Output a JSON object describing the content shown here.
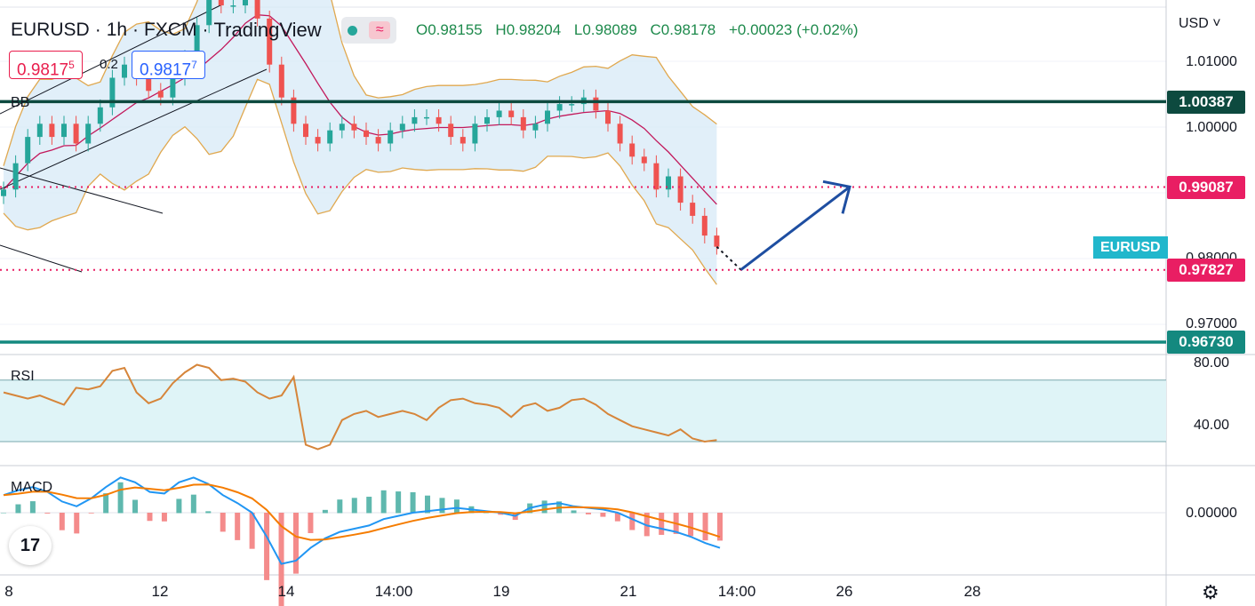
{
  "header": {
    "symbol": "EURUSD",
    "interval": "1h",
    "exchange": "FXCM",
    "brand": "TradingView",
    "icons": [
      "status-dot-icon",
      "wave-icon"
    ],
    "ohlc": {
      "open": "O0.98155",
      "high": "H0.98204",
      "low": "L0.98089",
      "close": "C0.98178",
      "change": "+0.00023 (+0.02%)"
    },
    "sell_price_main": "0.9817",
    "sell_price_sup": "5",
    "buy_price_main": "0.9817",
    "buy_price_sup": "7",
    "spread": "0.2"
  },
  "indicators": {
    "bb": "BB",
    "rsi": "RSI",
    "macd": "MACD"
  },
  "currency": "USD",
  "symbol_tag": "EURUSD",
  "price_axis": [
    "1.01000",
    "1.00000",
    "0.98000",
    "0.97000"
  ],
  "rsi_axis": [
    "80.00",
    "40.00"
  ],
  "macd_axis": [
    "0.00000"
  ],
  "level_labels": [
    {
      "value": "1.00387",
      "color": "#0d4a3f"
    },
    {
      "value": "0.99087",
      "color": "#e91e63"
    },
    {
      "value": "0.97827",
      "color": "#e91e63"
    },
    {
      "value": "0.96730",
      "color": "#14897f"
    }
  ],
  "x_axis": [
    "8",
    "12",
    "14",
    "14:00",
    "19",
    "21",
    "14:00",
    "26",
    "28"
  ],
  "colors": {
    "up": "#26a69a",
    "down": "#ef5350",
    "bb_fill": "#d7e9f7",
    "bb_band": "#e0a84f",
    "bb_basis": "#c2185b",
    "rsi_line": "#d6853a",
    "rsi_band": "#dff4f7",
    "macd_line": "#2196f3",
    "signal_line": "#f57c00",
    "arrow": "#1e4ea1"
  },
  "chart_data": {
    "type": "line",
    "title": "EURUSD · 1h · FXCM",
    "series": [
      {
        "name": "EURUSD",
        "values": [
          0.9905,
          0.9945,
          0.9985,
          1.0005,
          0.9985,
          1.0005,
          0.9975,
          1.0005,
          1.003,
          1.0075,
          1.0095,
          1.0075,
          1.0055,
          1.0045,
          1.0075,
          1.0105,
          1.0155,
          1.0205,
          1.0185,
          1.0185,
          1.0195,
          1.0165,
          1.0095,
          1.0045,
          1.0005,
          0.9985,
          0.9975,
          0.9995,
          1.0005,
          0.9995,
          0.9985,
          0.9975,
          0.9995,
          1.0005,
          1.0015,
          1.0015,
          1.0005,
          0.9985,
          0.9975,
          1.0005,
          1.0015,
          1.0025,
          1.0015,
          0.9995,
          1.0005,
          1.0025,
          1.0035,
          1.0035,
          1.0045,
          1.0025,
          1.0005,
          0.9975,
          0.9955,
          0.9945,
          0.9905,
          0.9925,
          0.9885,
          0.9865,
          0.9835,
          0.9818
        ]
      }
    ],
    "levels": [
      1.00387,
      0.99087,
      0.97827,
      0.9673
    ],
    "projection": [
      {
        "t": 59,
        "v": 0.9818
      },
      {
        "t": 61,
        "v": 0.9783
      },
      {
        "t": 70,
        "v": 0.9909
      }
    ],
    "rsi": [
      62,
      60,
      58,
      60,
      57,
      54,
      65,
      64,
      66,
      76,
      78,
      62,
      55,
      58,
      68,
      75,
      80,
      78,
      70,
      71,
      69,
      62,
      58,
      60,
      72,
      28,
      25,
      28,
      44,
      48,
      50,
      46,
      48,
      50,
      48,
      44,
      52,
      57,
      58,
      55,
      54,
      52,
      46,
      53,
      55,
      50,
      52,
      57,
      58,
      54,
      48,
      44,
      40,
      38,
      36,
      34,
      38,
      32,
      30,
      31
    ],
    "macd": [
      0.0011,
      0.0014,
      0.0016,
      0.0013,
      0.0007,
      0.0004,
      0.0009,
      0.0016,
      0.0022,
      0.0019,
      0.0013,
      0.0012,
      0.0019,
      0.0022,
      0.0018,
      0.0011,
      0.0006,
      0.0,
      -0.0015,
      -0.0032,
      -0.003,
      -0.0022,
      -0.0016,
      -0.0012,
      -0.001,
      -0.0008,
      -0.0004,
      -0.0002,
      0.0,
      0.0001,
      0.0002,
      0.0003,
      0.0002,
      0.0001,
      0.0,
      -0.0002,
      0.0003,
      0.0005,
      0.0006,
      0.0004,
      0.0003,
      0.0002,
      0.0,
      -0.0004,
      -0.0008,
      -0.001,
      -0.0012,
      -0.0015,
      -0.0019,
      -0.0022
    ],
    "macd_axis_ticks": [
      0.0
    ]
  }
}
